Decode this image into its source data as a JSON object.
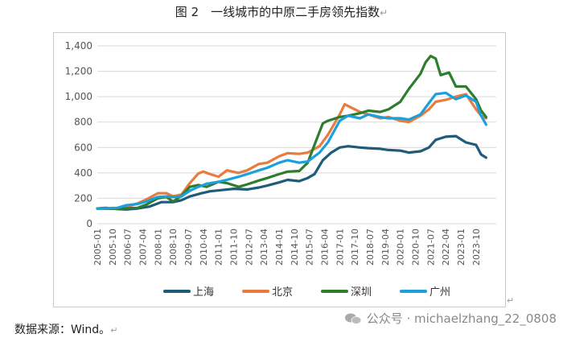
{
  "title": "图 2　一线城市的中原二手房领先指数",
  "paragraph_mark": "↵",
  "source": "数据来源：Wind。",
  "watermark": "公众号 · michaelzhang_22_0808",
  "chart_data": {
    "type": "line",
    "title": "图 2　一线城市的中原二手房领先指数",
    "xlabel": "",
    "ylabel": "",
    "ylim": [
      0,
      1400
    ],
    "yticks": [
      0,
      200,
      400,
      600,
      800,
      1000,
      1200,
      1400
    ],
    "ytick_labels": [
      "0",
      "200",
      "400",
      "600",
      "800",
      "1,000",
      "1,200",
      "1,400"
    ],
    "xlim": [
      "2005-01",
      "2024-10"
    ],
    "xtick_labels": [
      "2005-01",
      "2005-10",
      "2006-07",
      "2007-04",
      "2008-01",
      "2008-10",
      "2009-07",
      "2010-04",
      "2011-01",
      "2011-10",
      "2012-07",
      "2013-04",
      "2014-01",
      "2014-10",
      "2015-07",
      "2016-04",
      "2017-01",
      "2017-10",
      "2018-07",
      "2019-04",
      "2020-01",
      "2020-10",
      "2021-07",
      "2022-04",
      "2023-01",
      "2023-10"
    ],
    "grid": "horizontal",
    "legend": "bottom",
    "series": [
      {
        "name": "上海",
        "color": "#1f5c7a",
        "x": [
          "2005-01",
          "2005-06",
          "2006-01",
          "2006-06",
          "2007-01",
          "2007-08",
          "2008-03",
          "2008-10",
          "2009-03",
          "2009-08",
          "2010-03",
          "2010-08",
          "2011-03",
          "2011-10",
          "2012-06",
          "2013-01",
          "2013-06",
          "2014-01",
          "2014-06",
          "2015-01",
          "2015-06",
          "2015-10",
          "2016-03",
          "2016-08",
          "2017-01",
          "2017-06",
          "2018-01",
          "2018-06",
          "2019-01",
          "2019-06",
          "2020-01",
          "2020-06",
          "2021-01",
          "2021-06",
          "2021-10",
          "2022-04",
          "2022-10",
          "2023-04",
          "2023-10",
          "2024-01",
          "2024-04"
        ],
        "values": [
          120,
          125,
          115,
          112,
          120,
          135,
          170,
          170,
          185,
          215,
          240,
          255,
          265,
          275,
          270,
          285,
          300,
          325,
          345,
          335,
          360,
          390,
          500,
          560,
          600,
          610,
          600,
          595,
          590,
          580,
          575,
          560,
          570,
          600,
          660,
          685,
          690,
          640,
          620,
          545,
          520
        ]
      },
      {
        "name": "北京",
        "color": "#e87c3e",
        "x": [
          "2005-01",
          "2006-01",
          "2006-06",
          "2007-01",
          "2007-06",
          "2008-01",
          "2008-06",
          "2008-10",
          "2009-03",
          "2009-08",
          "2010-01",
          "2010-04",
          "2010-08",
          "2011-01",
          "2011-06",
          "2012-01",
          "2012-06",
          "2013-01",
          "2013-06",
          "2014-01",
          "2014-06",
          "2015-01",
          "2015-06",
          "2016-01",
          "2016-06",
          "2017-01",
          "2017-04",
          "2017-07",
          "2018-01",
          "2018-06",
          "2019-01",
          "2019-06",
          "2020-01",
          "2020-06",
          "2021-01",
          "2021-06",
          "2021-10",
          "2022-04",
          "2022-10",
          "2023-04",
          "2023-10",
          "2024-01",
          "2024-04"
        ],
        "values": [
          120,
          118,
          130,
          160,
          190,
          240,
          240,
          215,
          230,
          320,
          395,
          410,
          390,
          370,
          420,
          400,
          420,
          470,
          480,
          530,
          555,
          550,
          560,
          610,
          700,
          860,
          940,
          920,
          880,
          860,
          830,
          840,
          810,
          800,
          850,
          900,
          960,
          975,
          1000,
          1020,
          900,
          850,
          830
        ]
      },
      {
        "name": "深圳",
        "color": "#2e7d2e",
        "x": [
          "2005-01",
          "2006-01",
          "2007-01",
          "2007-06",
          "2008-01",
          "2008-06",
          "2008-10",
          "2009-03",
          "2009-08",
          "2010-01",
          "2010-06",
          "2011-01",
          "2011-06",
          "2012-01",
          "2012-06",
          "2013-01",
          "2013-06",
          "2014-01",
          "2014-06",
          "2015-01",
          "2015-06",
          "2015-10",
          "2016-03",
          "2016-06",
          "2017-01",
          "2017-06",
          "2018-01",
          "2018-06",
          "2019-01",
          "2019-06",
          "2020-01",
          "2020-06",
          "2021-01",
          "2021-04",
          "2021-07",
          "2021-10",
          "2022-01",
          "2022-06",
          "2022-10",
          "2023-04",
          "2023-10",
          "2024-01",
          "2024-04"
        ],
        "values": [
          120,
          118,
          125,
          150,
          200,
          210,
          175,
          220,
          290,
          305,
          290,
          330,
          320,
          290,
          310,
          340,
          360,
          390,
          410,
          415,
          480,
          620,
          790,
          810,
          840,
          850,
          870,
          890,
          880,
          900,
          960,
          1060,
          1180,
          1270,
          1320,
          1300,
          1170,
          1190,
          1080,
          1080,
          980,
          890,
          840
        ]
      },
      {
        "name": "广州",
        "color": "#1aa0dc",
        "x": [
          "2005-01",
          "2006-01",
          "2006-06",
          "2007-01",
          "2007-06",
          "2008-01",
          "2008-06",
          "2008-10",
          "2009-03",
          "2009-08",
          "2010-01",
          "2010-06",
          "2011-01",
          "2011-06",
          "2012-01",
          "2012-06",
          "2013-01",
          "2013-06",
          "2014-01",
          "2014-06",
          "2015-01",
          "2015-06",
          "2016-01",
          "2016-06",
          "2017-01",
          "2017-06",
          "2018-01",
          "2018-06",
          "2019-01",
          "2019-06",
          "2020-01",
          "2020-06",
          "2021-01",
          "2021-06",
          "2021-10",
          "2022-04",
          "2022-10",
          "2023-04",
          "2023-10",
          "2024-01",
          "2024-04"
        ],
        "values": [
          120,
          125,
          145,
          155,
          175,
          210,
          215,
          210,
          215,
          260,
          290,
          315,
          330,
          345,
          370,
          390,
          420,
          440,
          480,
          500,
          480,
          490,
          560,
          640,
          810,
          850,
          830,
          860,
          840,
          830,
          830,
          820,
          860,
          950,
          1020,
          1030,
          980,
          1010,
          960,
          850,
          780
        ]
      }
    ]
  }
}
